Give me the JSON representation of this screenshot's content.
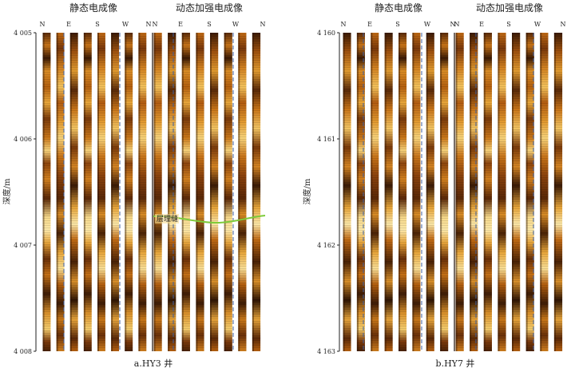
{
  "panels": [
    {
      "id": "a",
      "caption": "a.HY3 井",
      "y_label": "深度/m",
      "static_title": "静态电成像",
      "dynamic_title": "动态加强电成像",
      "compass": [
        "N",
        "E",
        "S",
        "W",
        "N"
      ],
      "depth_ticks": [
        "4 005",
        "4 006",
        "4 007",
        "4 008"
      ],
      "depth_range": [
        4005,
        4008
      ],
      "annotation": "层理缝",
      "annotation_depth": 4006.75
    },
    {
      "id": "b",
      "caption": "b.HY7 井",
      "y_label": "深度/m",
      "static_title": "静态电成像",
      "dynamic_title": "动态加强电成像",
      "compass": [
        "N",
        "E",
        "S",
        "W",
        "N"
      ],
      "depth_ticks": [
        "4 160",
        "4 161",
        "4 162",
        "4 163"
      ],
      "depth_range": [
        4160,
        4163
      ]
    }
  ],
  "colors": {
    "dark": "#3a1a06",
    "mid": "#b8620f",
    "light": "#f3c25b",
    "pale": "#fbe7a8",
    "fracture": "#7ecb3a",
    "dashed": "#4060a0"
  }
}
